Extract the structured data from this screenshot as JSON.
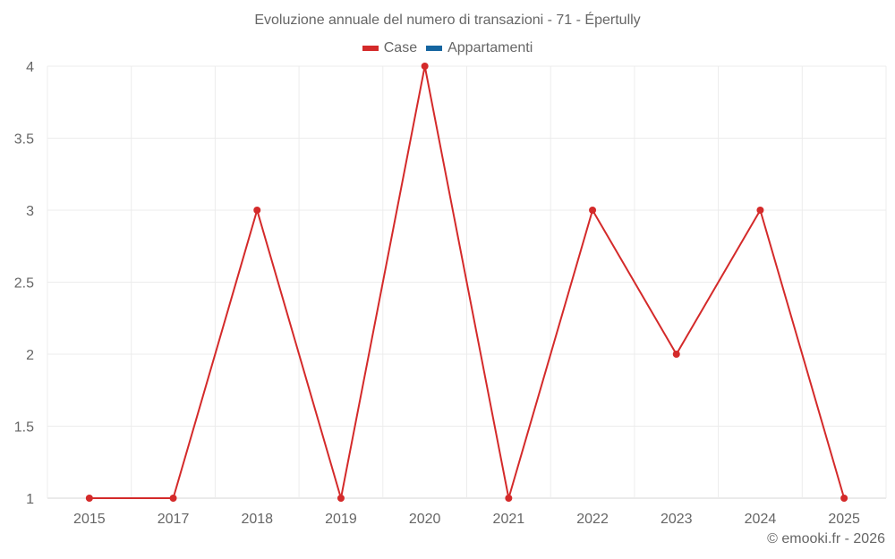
{
  "chart_data": {
    "type": "line",
    "title": "Evoluzione annuale del numero di transazioni - 71 - Épertully",
    "categories": [
      "2015",
      "2017",
      "2018",
      "2019",
      "2020",
      "2021",
      "2022",
      "2023",
      "2024",
      "2025"
    ],
    "series": [
      {
        "name": "Case",
        "color": "#d42a2a",
        "values": [
          1,
          1,
          3,
          1,
          4,
          1,
          3,
          2,
          3,
          1
        ]
      },
      {
        "name": "Appartamenti",
        "color": "#1565a0",
        "values": []
      }
    ],
    "xlabel": "",
    "ylabel": "",
    "ylim": [
      1,
      4
    ],
    "yticks": [
      "1",
      "1.5",
      "2",
      "2.5",
      "3",
      "3.5",
      "4"
    ],
    "grid": true,
    "legend_position": "top"
  },
  "credit": "© emooki.fr - 2026"
}
